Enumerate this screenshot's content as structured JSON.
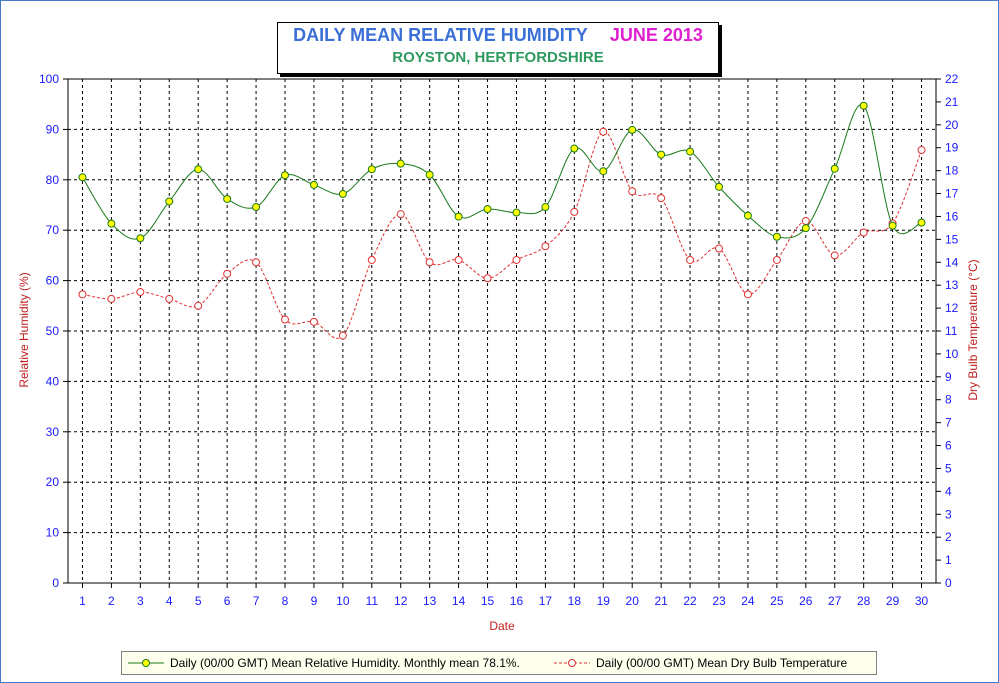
{
  "window": {
    "frame_color": "#4a79c8",
    "background": "#ffffff"
  },
  "title": {
    "main": "DAILY MEAN RELATIVE HUMIDITY",
    "month": "JUNE 2013",
    "subtitle": "ROYSTON, HERTFORDSHIRE"
  },
  "chart_data": {
    "type": "line",
    "title": "DAILY MEAN RELATIVE HUMIDITY JUNE 2013",
    "subtitle": "ROYSTON, HERTFORDSHIRE",
    "xlabel": "Date",
    "ylabel": "Relative Humidity (%)",
    "y2label": "Dry Bulb Temperature (°C)",
    "x": [
      1,
      2,
      3,
      4,
      5,
      6,
      7,
      8,
      9,
      10,
      11,
      12,
      13,
      14,
      15,
      16,
      17,
      18,
      19,
      20,
      21,
      22,
      23,
      24,
      25,
      26,
      27,
      28,
      29,
      30
    ],
    "xlim": [
      0.5,
      30.5
    ],
    "ylim": [
      0,
      100
    ],
    "y2lim": [
      0,
      22
    ],
    "yticks": [
      0,
      10,
      20,
      30,
      40,
      50,
      60,
      70,
      80,
      90,
      100
    ],
    "y2ticks": [
      0,
      1,
      2,
      3,
      4,
      5,
      6,
      7,
      8,
      9,
      10,
      11,
      12,
      13,
      14,
      15,
      16,
      17,
      18,
      19,
      20,
      21,
      22
    ],
    "grid": true,
    "legend_position": "bottom",
    "series": [
      {
        "name": "Daily (00/00 GMT) Mean Relative Humidity. Monthly mean 78.1%.",
        "axis": "left",
        "color": "#1a7a1a",
        "marker_color": "#ffff00",
        "line_style": "solid",
        "values": [
          80.5,
          71.3,
          68.4,
          75.7,
          82.1,
          76.2,
          74.6,
          80.9,
          79.0,
          77.2,
          82.1,
          83.2,
          81.0,
          72.7,
          74.2,
          73.5,
          74.6,
          86.2,
          81.7,
          89.9,
          85.0,
          85.6,
          78.6,
          72.9,
          68.7,
          70.4,
          82.2,
          94.7,
          70.9,
          71.5
        ]
      },
      {
        "name": "Daily (00/00 GMT) Mean Dry Bulb Temperature",
        "axis": "right",
        "color": "#e03030",
        "marker_color": "#ffffff",
        "line_style": "dashed",
        "values": [
          12.6,
          12.4,
          12.7,
          12.4,
          12.1,
          13.5,
          14.0,
          11.5,
          11.4,
          10.8,
          14.1,
          16.1,
          14.0,
          14.1,
          13.3,
          14.1,
          14.7,
          16.2,
          19.7,
          17.1,
          16.8,
          14.1,
          14.6,
          12.6,
          14.1,
          15.8,
          14.3,
          15.3,
          15.7,
          18.9
        ]
      }
    ]
  }
}
